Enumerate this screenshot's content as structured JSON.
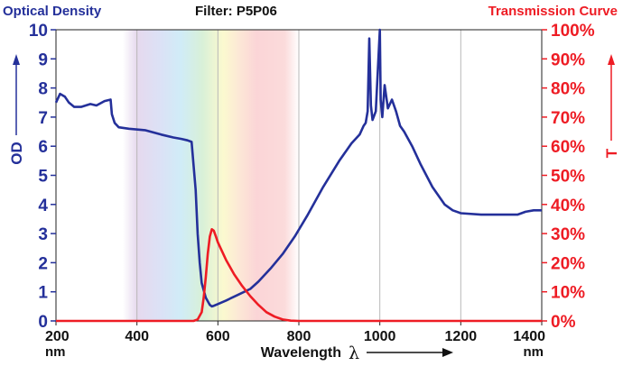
{
  "header": {
    "left_title": "Optical Density",
    "center_title": "Filter: P5P06",
    "right_title": "Transmission Curve"
  },
  "chart_data": {
    "type": "line",
    "colors": {
      "od": "#24309a",
      "transmission": "#ee1c24",
      "axis_text": "#111111"
    },
    "xlabel": "Wavelength",
    "xlabel_symbol": "λ",
    "x_unit": "nm",
    "xlim": [
      200,
      1400
    ],
    "x_ticks": [
      200,
      400,
      600,
      800,
      1000,
      1200,
      1400
    ],
    "y_left": {
      "label": "OD",
      "ylim": [
        0,
        10
      ],
      "ticks": [
        "0",
        "1",
        "2",
        "3",
        "4",
        "5",
        "6",
        "7",
        "8",
        "9",
        "10"
      ]
    },
    "y_right": {
      "label": "T",
      "ylim": [
        0,
        100
      ],
      "ticks": [
        "0%",
        "10%",
        "20%",
        "30%",
        "40%",
        "50%",
        "60%",
        "70%",
        "80%",
        "90%",
        "100%"
      ]
    },
    "visible_spectrum_band": [
      365,
      800
    ],
    "grid": "vertical at x ticks",
    "series": [
      {
        "axis": "left",
        "x": [
          200,
          210,
          222,
          232,
          245,
          262,
          285,
          300,
          320,
          335,
          338,
          345,
          355,
          380,
          420,
          460,
          490,
          510,
          525,
          535,
          545,
          550,
          555,
          560,
          570,
          580,
          585,
          590,
          600,
          620,
          650,
          680,
          700,
          730,
          760,
          790,
          820,
          860,
          900,
          930,
          950,
          960,
          965,
          970,
          974,
          978,
          982,
          990,
          1000,
          1002,
          1006,
          1012,
          1020,
          1030,
          1040,
          1050,
          1060,
          1080,
          1100,
          1130,
          1160,
          1180,
          1200,
          1250,
          1300,
          1340,
          1360,
          1380,
          1400
        ],
        "values": [
          7.5,
          7.8,
          7.7,
          7.5,
          7.35,
          7.35,
          7.45,
          7.4,
          7.55,
          7.6,
          7.1,
          6.8,
          6.65,
          6.6,
          6.55,
          6.4,
          6.3,
          6.25,
          6.2,
          6.15,
          4.5,
          3.0,
          2.0,
          1.3,
          0.8,
          0.55,
          0.5,
          0.52,
          0.58,
          0.7,
          0.9,
          1.1,
          1.35,
          1.8,
          2.3,
          2.9,
          3.6,
          4.6,
          5.5,
          6.1,
          6.4,
          6.7,
          6.8,
          7.2,
          9.7,
          7.4,
          6.9,
          7.2,
          10,
          7.6,
          7.0,
          8.1,
          7.3,
          7.6,
          7.2,
          6.7,
          6.5,
          6.0,
          5.4,
          4.6,
          4.0,
          3.8,
          3.7,
          3.65,
          3.65,
          3.65,
          3.75,
          3.8,
          3.8
        ]
      },
      {
        "axis": "right",
        "x": [
          200,
          540,
          550,
          560,
          565,
          570,
          575,
          580,
          585,
          590,
          595,
          600,
          620,
          640,
          660,
          680,
          700,
          720,
          740,
          760,
          780,
          800,
          1400
        ],
        "values": [
          0,
          0,
          0.5,
          3,
          8,
          15,
          23,
          29,
          31.5,
          31,
          29,
          27,
          21,
          16,
          12,
          8.5,
          5.5,
          3,
          1.5,
          0.5,
          0.1,
          0,
          0
        ]
      }
    ]
  }
}
